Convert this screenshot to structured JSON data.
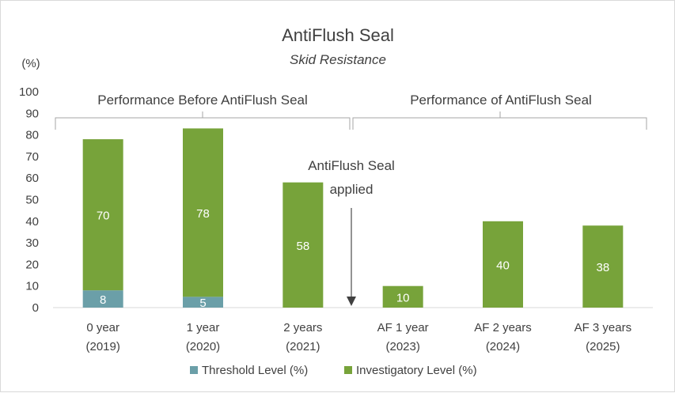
{
  "chart_data": {
    "type": "bar",
    "stacked": true,
    "title": "AntiFlush Seal",
    "subtitle": "Skid Resistance",
    "ylabel": "(%)",
    "ylim": [
      0,
      100
    ],
    "yticks": [
      0,
      10,
      20,
      30,
      40,
      50,
      60,
      70,
      80,
      90,
      100
    ],
    "grid": false,
    "legend_position": "bottom",
    "categories": [
      [
        "0 year",
        "(2019)"
      ],
      [
        "1 year",
        "(2020)"
      ],
      [
        "2 years",
        "(2021)"
      ],
      [
        "AF 1 year",
        "(2023)"
      ],
      [
        "AF 2 years",
        "(2024)"
      ],
      [
        "AF 3 years",
        "(2025)"
      ]
    ],
    "series": [
      {
        "name": "Threshold Level (%)",
        "color": "#6b9fa8",
        "values": [
          8,
          5,
          0,
          0,
          0,
          0
        ],
        "labels": [
          "8",
          "5",
          "",
          "",
          "",
          ""
        ]
      },
      {
        "name": "Investigatory Level (%)",
        "color": "#77a33a",
        "values": [
          70,
          78,
          58,
          10,
          40,
          38
        ],
        "labels": [
          "70",
          "78",
          "58",
          "10",
          "40",
          "38"
        ]
      }
    ],
    "annotations": {
      "group_before": "Performance Before AntiFlush Seal",
      "group_after": "Performance of AntiFlush Seal",
      "applied_line1": "AntiFlush Seal",
      "applied_line2": "applied"
    }
  }
}
